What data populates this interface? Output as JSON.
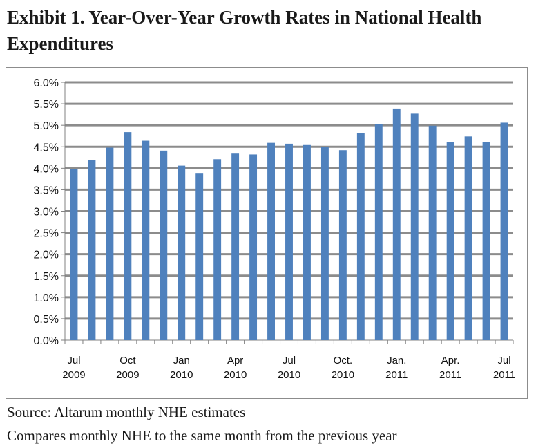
{
  "header": {
    "title": "Exhibit 1. Year-Over-Year Growth Rates in National Health Expenditures"
  },
  "footer": {
    "source": "Source: Altarum monthly NHE estimates",
    "note": "Compares monthly NHE to the same month from the previous year"
  },
  "colors": {
    "bar": "#4f81bd",
    "gridline": "#8c8c8c",
    "axis": "#808080"
  },
  "chart_data": {
    "type": "bar",
    "ylim": [
      0,
      6.0
    ],
    "ytick_step": 0.5,
    "ytick_labels": [
      "0.0%",
      "0.5%",
      "1.0%",
      "1.5%",
      "2.0%",
      "2.5%",
      "3.0%",
      "3.5%",
      "4.0%",
      "4.5%",
      "5.0%",
      "5.5%",
      "6.0%"
    ],
    "grid": true,
    "legend": "none",
    "categories": [
      "Jul 2009",
      "Aug 2009",
      "Sep 2009",
      "Oct 2009",
      "Nov 2009",
      "Dec 2009",
      "Jan 2010",
      "Feb 2010",
      "Mar 2010",
      "Apr 2010",
      "May 2010",
      "Jun 2010",
      "Jul 2010",
      "Aug 2010",
      "Sep 2010",
      "Oct. 2010",
      "Nov 2010",
      "Dec 2010",
      "Jan. 2011",
      "Feb 2011",
      "Mar 2011",
      "Apr. 2011",
      "May 2011",
      "Jun 2011",
      "Jul 2011"
    ],
    "values": [
      3.98,
      4.19,
      4.48,
      4.84,
      4.64,
      4.41,
      4.06,
      3.89,
      4.21,
      4.34,
      4.32,
      4.59,
      4.57,
      4.54,
      4.49,
      4.42,
      4.82,
      5.02,
      5.39,
      5.27,
      4.99,
      4.61,
      4.74,
      4.61,
      5.06
    ],
    "xtick_labels": [
      {
        "index": 0,
        "line1": "Jul",
        "line2": "2009"
      },
      {
        "index": 3,
        "line1": "Oct",
        "line2": "2009"
      },
      {
        "index": 6,
        "line1": "Jan",
        "line2": "2010"
      },
      {
        "index": 9,
        "line1": "Apr",
        "line2": "2010"
      },
      {
        "index": 12,
        "line1": "Jul",
        "line2": "2010"
      },
      {
        "index": 15,
        "line1": "Oct.",
        "line2": "2010"
      },
      {
        "index": 18,
        "line1": "Jan.",
        "line2": "2011"
      },
      {
        "index": 21,
        "line1": "Apr.",
        "line2": "2011"
      },
      {
        "index": 24,
        "line1": "Jul",
        "line2": "2011"
      }
    ]
  }
}
